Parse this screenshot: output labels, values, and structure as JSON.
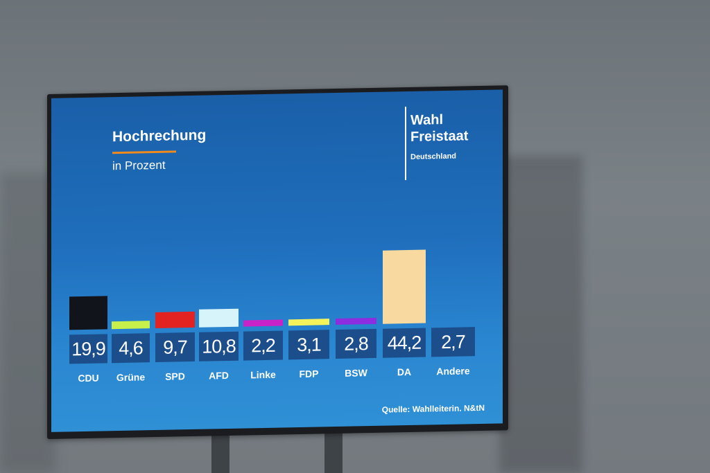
{
  "screen": {
    "title": "Hochrechung",
    "subtitle": "in Prozent",
    "brand_line1": "Wahl",
    "brand_line2": "Freistaat",
    "brand_line3": "Deutschland",
    "source": "Quelle: Wahlleiterin. N&tN",
    "accent_color": "#f08a1c",
    "background_color": "#1f6fbd"
  },
  "chart_data": {
    "type": "bar",
    "title": "Hochrechung",
    "subtitle": "in Prozent",
    "xlabel": "",
    "ylabel": "Prozent",
    "categories": [
      "CDU",
      "Grüne",
      "SPD",
      "AFD",
      "Linke",
      "FDP",
      "BSW",
      "DA",
      "Andere"
    ],
    "values": [
      19.9,
      4.6,
      9.7,
      10.8,
      2.2,
      3.1,
      2.8,
      44.2,
      2.7
    ],
    "value_labels": [
      "19,9",
      "4,6",
      "9,7",
      "10,8",
      "2,2",
      "3,1",
      "2,8",
      "44,2",
      "2,7"
    ],
    "colors": [
      "#12141c",
      "#c8f04a",
      "#e32222",
      "#d8f4fb",
      "#c823c8",
      "#f4f45a",
      "#8c2ee0",
      "#f8d9a0",
      null
    ],
    "ylim": [
      0,
      50
    ],
    "grid": false,
    "legend": "none",
    "source": "Quelle: Wahlleiterin. N&tN"
  }
}
